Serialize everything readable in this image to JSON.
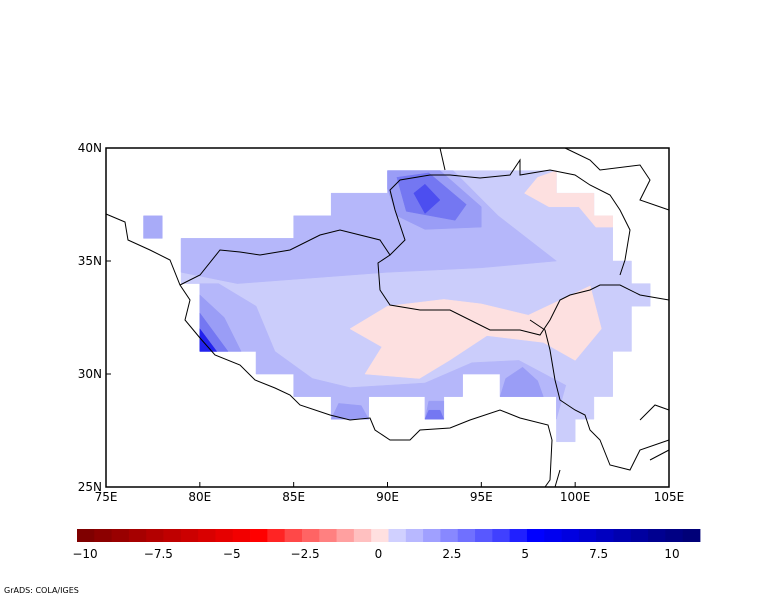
{
  "chart_data": {
    "type": "heatmap",
    "projection": "lat-lon",
    "xlim": [
      75,
      105
    ],
    "ylim": [
      25,
      40
    ],
    "x_ticks": [
      "75E",
      "80E",
      "85E",
      "90E",
      "95E",
      "100E",
      "105E"
    ],
    "x_tick_values": [
      75,
      80,
      85,
      90,
      95,
      100,
      105
    ],
    "y_ticks": [
      "40N",
      "35N",
      "30N",
      "25N"
    ],
    "y_tick_values": [
      40,
      35,
      30,
      25
    ],
    "colorbar": {
      "labels": [
        "-10",
        "-7.5",
        "-5",
        "-2.5",
        "0",
        "2.5",
        "5",
        "7.5",
        "10"
      ],
      "values": [
        -10,
        -7.5,
        -5,
        -2.5,
        0,
        2.5,
        5,
        7.5,
        10
      ],
      "colors": [
        "#7f0000",
        "#8c0000",
        "#990000",
        "#a60000",
        "#b30000",
        "#bf0000",
        "#cc0000",
        "#d90000",
        "#e60000",
        "#f20000",
        "#ff0000",
        "#ff2424",
        "#ff4848",
        "#ff6464",
        "#ff8080",
        "#ffa0a0",
        "#ffc0c0",
        "#ffe0e0",
        "#d0d0ff",
        "#b8b8ff",
        "#a0a0ff",
        "#8888ff",
        "#7070ff",
        "#5858ff",
        "#4040ff",
        "#2020ff",
        "#0000ff",
        "#0000f0",
        "#0000e0",
        "#0000d0",
        "#0000c0",
        "#0000b0",
        "#0000a0",
        "#000090",
        "#000084",
        "#000078"
      ]
    },
    "regions": [
      {
        "level": "0.5-1",
        "color": "#cbcdfb",
        "polygon": [
          [
            90,
            39
          ],
          [
            99,
            39
          ],
          [
            99,
            38
          ],
          [
            101,
            38
          ],
          [
            101,
            37
          ],
          [
            102,
            37
          ],
          [
            102,
            35
          ],
          [
            103,
            35
          ],
          [
            103,
            34
          ],
          [
            104,
            34
          ],
          [
            104,
            33
          ],
          [
            103,
            33
          ],
          [
            103,
            31
          ],
          [
            102,
            31
          ],
          [
            102,
            29
          ],
          [
            101,
            29
          ],
          [
            101,
            28
          ],
          [
            100,
            28
          ],
          [
            100,
            27
          ],
          [
            99,
            27
          ],
          [
            99,
            29
          ],
          [
            96,
            29
          ],
          [
            96,
            30
          ],
          [
            94,
            30
          ],
          [
            94,
            29
          ],
          [
            93,
            29
          ],
          [
            93,
            28
          ],
          [
            92,
            28
          ],
          [
            92,
            29
          ],
          [
            89,
            29
          ],
          [
            89,
            28
          ],
          [
            87,
            28
          ],
          [
            87,
            29
          ],
          [
            85,
            29
          ],
          [
            85,
            30
          ],
          [
            83,
            30
          ],
          [
            83,
            31
          ],
          [
            80,
            31
          ],
          [
            80,
            34
          ],
          [
            79,
            34
          ],
          [
            79,
            36
          ],
          [
            85,
            36
          ],
          [
            85,
            37
          ],
          [
            87,
            37
          ],
          [
            87,
            38
          ],
          [
            90,
            38
          ]
        ]
      },
      {
        "level": "1-1.5",
        "color": "#a8abf8",
        "polygon": [
          [
            77,
            37
          ],
          [
            78,
            37
          ],
          [
            78,
            36
          ],
          [
            77,
            36
          ]
        ]
      },
      {
        "level": "1-1.5",
        "color": "#b5b7fa",
        "polygon": [
          [
            79,
            36
          ],
          [
            85,
            36
          ],
          [
            85,
            37
          ],
          [
            87,
            37
          ],
          [
            87,
            38
          ],
          [
            90,
            38
          ],
          [
            90,
            39
          ],
          [
            93.5,
            39
          ],
          [
            95.9,
            37
          ],
          [
            99,
            35
          ],
          [
            95,
            34.7
          ],
          [
            90,
            34.5
          ],
          [
            82,
            34
          ],
          [
            79,
            34.5
          ]
        ]
      },
      {
        "level": "1-1.5",
        "color": "#b5b7fa",
        "polygon": [
          [
            80,
            34
          ],
          [
            80,
            31
          ],
          [
            83,
            31
          ],
          [
            83,
            30
          ],
          [
            85,
            30
          ],
          [
            85,
            29
          ],
          [
            87,
            29
          ],
          [
            87,
            28
          ],
          [
            89,
            28
          ],
          [
            89,
            29
          ],
          [
            92,
            29
          ],
          [
            92,
            28
          ],
          [
            93,
            28
          ],
          [
            93,
            29
          ],
          [
            94,
            29
          ],
          [
            94,
            30
          ],
          [
            96,
            30
          ],
          [
            96,
            29
          ],
          [
            99,
            29
          ],
          [
            99,
            28
          ],
          [
            99.5,
            29.5
          ],
          [
            97,
            30.6
          ],
          [
            94.5,
            30.5
          ],
          [
            92,
            29.6
          ],
          [
            88,
            29.4
          ],
          [
            86,
            29.8
          ],
          [
            84,
            31
          ],
          [
            83,
            33
          ],
          [
            81,
            34
          ]
        ]
      },
      {
        "level": "1.5-2",
        "color": "#9a9df6",
        "polygon": [
          [
            90,
            38.2
          ],
          [
            90,
            39
          ],
          [
            92.8,
            39
          ],
          [
            95,
            37.4
          ],
          [
            95,
            36.5
          ],
          [
            92,
            36.4
          ],
          [
            90.5,
            37
          ]
        ]
      },
      {
        "level": "1.5-2",
        "color": "#9a9df6",
        "polygon": [
          [
            80,
            31
          ],
          [
            80,
            33.5
          ],
          [
            81.3,
            32.5
          ],
          [
            82.2,
            31
          ]
        ]
      },
      {
        "level": "1.5-2",
        "color": "#9a9df6",
        "polygon": [
          [
            96,
            29
          ],
          [
            96.3,
            29.8
          ],
          [
            97.2,
            30.3
          ],
          [
            98,
            29.7
          ],
          [
            98.3,
            29
          ]
        ]
      },
      {
        "level": "1.5-2",
        "color": "#9a9df6",
        "polygon": [
          [
            87,
            28
          ],
          [
            89,
            28
          ],
          [
            88.6,
            28.6
          ],
          [
            87.4,
            28.7
          ]
        ]
      },
      {
        "level": "1.5-2",
        "color": "#9a9df6",
        "polygon": [
          [
            92,
            28
          ],
          [
            93,
            28
          ],
          [
            93,
            28.8
          ],
          [
            92.2,
            28.8
          ]
        ]
      },
      {
        "level": "2-2.5",
        "color": "#7477f2",
        "polygon": [
          [
            90.5,
            38.7
          ],
          [
            92.2,
            38.9
          ],
          [
            94.2,
            37.5
          ],
          [
            93.6,
            36.8
          ],
          [
            91,
            37.2
          ]
        ]
      },
      {
        "level": "2-2.5",
        "color": "#7477f2",
        "polygon": [
          [
            80,
            31
          ],
          [
            80,
            32.7
          ],
          [
            81.5,
            31
          ]
        ]
      },
      {
        "level": "2-2.5",
        "color": "#7477f2",
        "polygon": [
          [
            92,
            28
          ],
          [
            93,
            28
          ],
          [
            92.8,
            28.4
          ],
          [
            92.2,
            28.4
          ]
        ]
      },
      {
        "level": "2.5-3",
        "color": "#4c4ef0",
        "polygon": [
          [
            91.4,
            38
          ],
          [
            92,
            38.4
          ],
          [
            92.8,
            37.7
          ],
          [
            92,
            37.1
          ]
        ]
      },
      {
        "level": "3+",
        "color": "#2222ee",
        "polygon": [
          [
            80,
            31
          ],
          [
            80,
            32
          ],
          [
            80.9,
            31
          ]
        ]
      },
      {
        "level": "0-0.5",
        "color": "#fde0e0",
        "polygon": [
          [
            88,
            32
          ],
          [
            90,
            33
          ],
          [
            93,
            33.3
          ],
          [
            95,
            33.1
          ],
          [
            97.5,
            32.6
          ],
          [
            100.8,
            33.9
          ],
          [
            101.4,
            32
          ],
          [
            100,
            30.6
          ],
          [
            98.3,
            31.4
          ],
          [
            95.3,
            31.7
          ],
          [
            93.3,
            30.6
          ],
          [
            91.7,
            29.8
          ],
          [
            88.8,
            30
          ],
          [
            89.7,
            31.2
          ]
        ]
      },
      {
        "level": "0-0.5",
        "color": "#fde0e0",
        "polygon": [
          [
            97.3,
            38
          ],
          [
            98,
            38.7
          ],
          [
            99,
            39
          ],
          [
            99,
            38
          ],
          [
            101,
            38
          ],
          [
            101,
            37
          ],
          [
            102,
            37
          ],
          [
            102,
            36.5
          ],
          [
            101.1,
            36.5
          ],
          [
            100.2,
            37.4
          ],
          [
            98.6,
            37.4
          ]
        ]
      }
    ]
  },
  "footer": "GrADS: COLA/IGES"
}
